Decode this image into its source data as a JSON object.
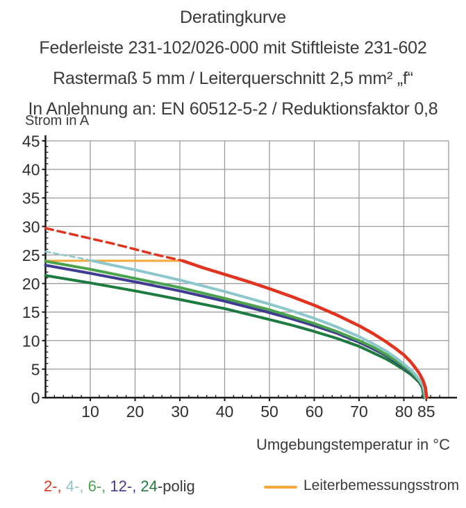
{
  "title": {
    "line1": "Deratingkurve",
    "line2": "Federleiste 231-102/026-000 mit Stiftleiste 231-602",
    "line3": "Rastermaß 5 mm / Leiterquerschnitt 2,5 mm² „f“",
    "line4": "In Anlehnung an: EN 60512-5-2 / Reduktionsfaktor 0,8"
  },
  "legend": {
    "poles": [
      {
        "text": "2-, ",
        "color": "#e2331f"
      },
      {
        "text": "4-, ",
        "color": "#8cc7cc"
      },
      {
        "text": "6-, ",
        "color": "#4aa34a"
      },
      {
        "text": "12-, ",
        "color": "#3f3b90"
      },
      {
        "text": "24",
        "color": "#1e7b3f"
      },
      {
        "text": "-polig",
        "color": "#3a3a38"
      }
    ],
    "rated_current_label": "Leiterbemessungsstrom",
    "rated_current_color": "#f7a83c"
  },
  "colors": {
    "grid": "#9b9b9b",
    "axis": "#1a1a1a",
    "tick_text": "#2e2e2d"
  },
  "chart_data": {
    "type": "line",
    "title": "Deratingkurve",
    "xlabel": "Umgebungstemperatur in °C",
    "ylabel": "Strom in A",
    "xlim": [
      0,
      91
    ],
    "ylim": [
      0,
      45
    ],
    "x_tick_labels": [
      10,
      20,
      30,
      40,
      50,
      60,
      70,
      80,
      85
    ],
    "x_gridlines": [
      10,
      20,
      30,
      40,
      50,
      60,
      70,
      80,
      90
    ],
    "y_tick_labels": [
      0,
      5,
      10,
      15,
      20,
      25,
      30,
      35,
      40,
      45
    ],
    "y_gridlines": [
      5,
      10,
      15,
      20,
      25,
      30,
      35,
      40,
      45
    ],
    "x_minor_tick_step": 2,
    "y_minor_tick_step": 1,
    "grid": true,
    "legend_position": "bottom",
    "rated_current": {
      "name": "Leiterbemessungsstrom",
      "color": "#f7a83c",
      "width": 3,
      "points": [
        [
          0,
          24
        ],
        [
          30.6,
          24
        ]
      ]
    },
    "series": [
      {
        "name": "24-polig",
        "color": "#1e7b3f",
        "width": 4,
        "segments": [
          {
            "style": "solid",
            "points": [
              [
                0,
                21.4
              ],
              [
                10,
                20.1
              ],
              [
                20,
                18.7
              ],
              [
                30,
                17.2
              ],
              [
                40,
                15.6
              ],
              [
                50,
                13.7
              ],
              [
                55,
                12.7
              ],
              [
                60,
                11.6
              ],
              [
                65,
                10.4
              ],
              [
                70,
                9.0
              ],
              [
                73,
                7.9
              ],
              [
                76,
                6.8
              ],
              [
                78,
                5.9
              ],
              [
                80,
                4.9
              ],
              [
                81.5,
                4.1
              ],
              [
                82.5,
                3.4
              ],
              [
                83.5,
                2.6
              ],
              [
                84.1,
                1.8
              ],
              [
                84.5,
                0
              ]
            ]
          }
        ]
      },
      {
        "name": "12-polig",
        "color": "#3f3b90",
        "width": 4,
        "segments": [
          {
            "style": "solid",
            "points": [
              [
                0,
                23.2
              ],
              [
                10,
                21.8
              ],
              [
                20,
                20.3
              ],
              [
                30,
                18.7
              ],
              [
                40,
                16.9
              ],
              [
                50,
                14.9
              ],
              [
                55,
                13.8
              ],
              [
                60,
                12.6
              ],
              [
                65,
                11.3
              ],
              [
                70,
                9.7
              ],
              [
                73,
                8.6
              ],
              [
                76,
                7.4
              ],
              [
                78,
                6.4
              ],
              [
                80,
                5.3
              ],
              [
                81.5,
                4.4
              ],
              [
                82.5,
                3.7
              ],
              [
                83.5,
                2.8
              ],
              [
                84.2,
                1.9
              ],
              [
                84.6,
                0
              ]
            ]
          }
        ]
      },
      {
        "name": "6-polig",
        "color": "#4aa34a",
        "width": 4,
        "segments": [
          {
            "style": "solid",
            "points": [
              [
                0,
                23.9
              ],
              [
                10,
                22.5
              ],
              [
                20,
                20.9
              ],
              [
                30,
                19.3
              ],
              [
                40,
                17.4
              ],
              [
                50,
                15.4
              ],
              [
                55,
                14.2
              ],
              [
                60,
                13.0
              ],
              [
                65,
                11.6
              ],
              [
                70,
                10.0
              ],
              [
                73,
                8.9
              ],
              [
                76,
                7.6
              ],
              [
                78,
                6.6
              ],
              [
                80,
                5.5
              ],
              [
                81.5,
                4.6
              ],
              [
                82.5,
                3.8
              ],
              [
                83.5,
                2.9
              ],
              [
                84.2,
                2.0
              ],
              [
                84.7,
                0
              ]
            ]
          }
        ]
      },
      {
        "name": "4-polig",
        "color": "#8cc7cc",
        "width": 4,
        "segments": [
          {
            "style": "dashed",
            "dash": "7 5",
            "width": 2.5,
            "points": [
              [
                0,
                25.6
              ],
              [
                4,
                25.0
              ],
              [
                8,
                24.4
              ],
              [
                10.4,
                24.0
              ]
            ]
          },
          {
            "style": "solid",
            "points": [
              [
                10.4,
                24.0
              ],
              [
                15,
                23.2
              ],
              [
                20,
                22.4
              ],
              [
                25,
                21.5
              ],
              [
                30,
                20.6
              ],
              [
                35,
                19.6
              ],
              [
                40,
                18.6
              ],
              [
                45,
                17.5
              ],
              [
                50,
                16.4
              ],
              [
                55,
                15.2
              ],
              [
                60,
                13.9
              ],
              [
                65,
                12.4
              ],
              [
                70,
                10.7
              ],
              [
                73,
                9.5
              ],
              [
                76,
                8.2
              ],
              [
                78,
                7.1
              ],
              [
                80,
                5.9
              ],
              [
                81.5,
                4.9
              ],
              [
                82.5,
                4.1
              ],
              [
                83.5,
                3.1
              ],
              [
                84.3,
                2.1
              ],
              [
                84.9,
                0
              ]
            ]
          }
        ]
      },
      {
        "name": "2-polig",
        "color": "#e2331f",
        "width": 4.5,
        "segments": [
          {
            "style": "dashed",
            "dash": "11 7",
            "width": 3.5,
            "points": [
              [
                0,
                29.7
              ],
              [
                5,
                28.8
              ],
              [
                10,
                27.9
              ],
              [
                15,
                27.0
              ],
              [
                20,
                26.0
              ],
              [
                25,
                25.0
              ],
              [
                30,
                24.1
              ],
              [
                30.6,
                24.0
              ]
            ]
          },
          {
            "style": "solid",
            "points": [
              [
                30.6,
                24.0
              ],
              [
                35,
                22.8
              ],
              [
                40,
                21.6
              ],
              [
                45,
                20.4
              ],
              [
                50,
                19.1
              ],
              [
                55,
                17.7
              ],
              [
                60,
                16.2
              ],
              [
                65,
                14.5
              ],
              [
                70,
                12.6
              ],
              [
                73,
                11.3
              ],
              [
                76,
                9.8
              ],
              [
                78,
                8.7
              ],
              [
                80,
                7.5
              ],
              [
                81.5,
                6.3
              ],
              [
                82.5,
                5.3
              ],
              [
                83.5,
                4.2
              ],
              [
                84.3,
                3.0
              ],
              [
                84.8,
                1.8
              ],
              [
                85.1,
                0
              ]
            ]
          }
        ]
      }
    ]
  }
}
